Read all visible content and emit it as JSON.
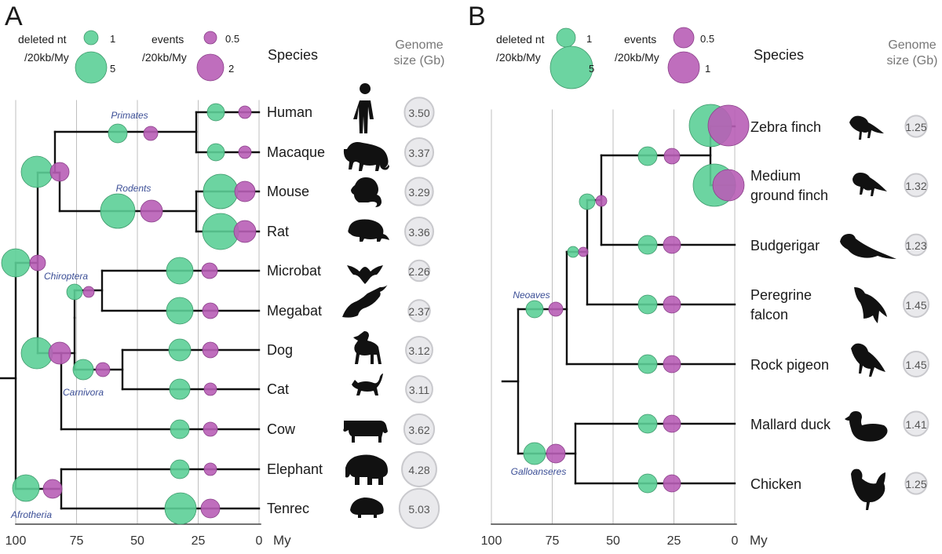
{
  "colors": {
    "deleted": "#5ccf97",
    "events": "#b85eb6",
    "line": "#111111",
    "grid": "#bfbfbf",
    "genome_fill": "#e9e9ec",
    "genome_stroke": "#c9c9cd",
    "clade": "#3b4e96"
  },
  "panelA": {
    "letter": "A",
    "legend": {
      "deleted_label_1": "deleted nt",
      "deleted_label_2": "/20kb/My",
      "deleted_small": "1",
      "deleted_large": "5",
      "events_label_1": "events",
      "events_label_2": "/20kb/My",
      "events_small": "0.5",
      "events_large": "2"
    },
    "species_header": "Species",
    "genome_header_1": "Genome",
    "genome_header_2": "size (Gb)",
    "axis": {
      "ticks": [
        "100",
        "75",
        "50",
        "25",
        "0"
      ],
      "unit": "My"
    },
    "clades": [
      "Primates",
      "Rodents",
      "Chiroptera",
      "Carnivora",
      "Afrotheria"
    ],
    "species": [
      {
        "name": "Human",
        "genome": "3.50",
        "icon": "human-icon"
      },
      {
        "name": "Macaque",
        "genome": "3.37",
        "icon": "macaque-icon"
      },
      {
        "name": "Mouse",
        "genome": "3.29",
        "icon": "mouse-icon"
      },
      {
        "name": "Rat",
        "genome": "3.36",
        "icon": "rat-icon"
      },
      {
        "name": "Microbat",
        "genome": "2.26",
        "icon": "microbat-icon"
      },
      {
        "name": "Megabat",
        "genome": "2.37",
        "icon": "megabat-icon"
      },
      {
        "name": "Dog",
        "genome": "3.12",
        "icon": "dog-icon"
      },
      {
        "name": "Cat",
        "genome": "3.11",
        "icon": "cat-icon"
      },
      {
        "name": "Cow",
        "genome": "3.62",
        "icon": "cow-icon"
      },
      {
        "name": "Elephant",
        "genome": "4.28",
        "icon": "elephant-icon"
      },
      {
        "name": "Tenrec",
        "genome": "5.03",
        "icon": "tenrec-icon"
      }
    ]
  },
  "panelB": {
    "letter": "B",
    "legend": {
      "deleted_label_1": "deleted nt",
      "deleted_label_2": "/20kb/My",
      "deleted_small": "1",
      "deleted_large": "5",
      "events_label_1": "events",
      "events_label_2": "/20kb/My",
      "events_small": "0.5",
      "events_large": "1"
    },
    "species_header": "Species",
    "genome_header_1": "Genome",
    "genome_header_2": "size (Gb)",
    "axis": {
      "ticks": [
        "100",
        "75",
        "50",
        "25",
        "0"
      ],
      "unit": "My"
    },
    "clades": [
      "Neoaves",
      "Galloanseres"
    ],
    "species": [
      {
        "name_lines": [
          "Zebra finch"
        ],
        "genome": "1.25",
        "icon": "zebra-finch-icon"
      },
      {
        "name_lines": [
          "Medium",
          "ground finch"
        ],
        "genome": "1.32",
        "icon": "ground-finch-icon"
      },
      {
        "name_lines": [
          "Budgerigar"
        ],
        "genome": "1.23",
        "icon": "budgerigar-icon"
      },
      {
        "name_lines": [
          "Peregrine",
          "falcon"
        ],
        "genome": "1.45",
        "icon": "falcon-icon"
      },
      {
        "name_lines": [
          "Rock pigeon"
        ],
        "genome": "1.45",
        "icon": "pigeon-icon"
      },
      {
        "name_lines": [
          "Mallard duck"
        ],
        "genome": "1.41",
        "icon": "duck-icon"
      },
      {
        "name_lines": [
          "Chicken"
        ],
        "genome": "1.25",
        "icon": "chicken-icon"
      }
    ]
  }
}
